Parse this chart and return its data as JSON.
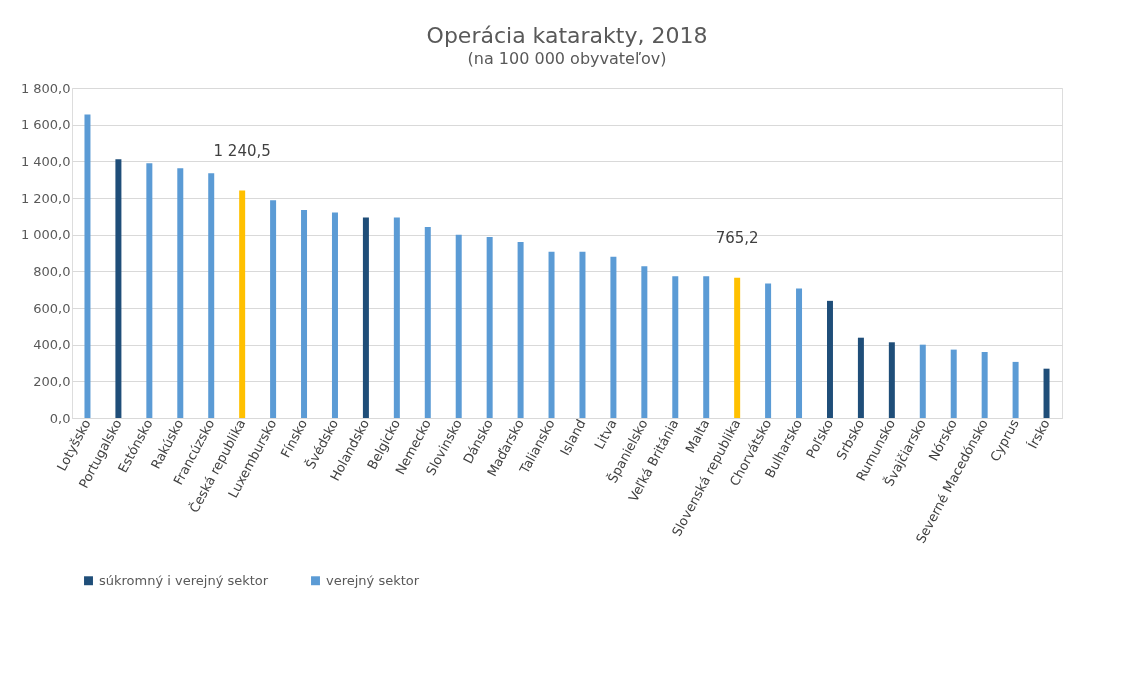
{
  "chart_data": {
    "type": "bar",
    "title": "Operácia katarakty, 2018",
    "subtitle": "(na 100 000 obyvateľov)",
    "categories": [
      "Lotyšsko",
      "Portugalsko",
      "Estónsko",
      "Rakúsko",
      "Francúzsko",
      "Česká republika",
      "Luxembursko",
      "Fínsko",
      "Švédsko",
      "Holandsko",
      "Belgicko",
      "Nemecko",
      "Slovinsko",
      "Dánsko",
      "Maďarsko",
      "Taliansko",
      "Island",
      "Litva",
      "Španielsko",
      "Veľká Británia",
      "Malta",
      "Slovenská republika",
      "Chorvátsko",
      "Bulharsko",
      "Poľsko",
      "Srbsko",
      "Rumunsko",
      "Švajčiarsko",
      "Nórsko",
      "Severné Macedónsko",
      "Cyprus",
      "Írsko"
    ],
    "series": [
      {
        "name": "súkromný i verejný sektor",
        "color": "#1f4e79",
        "values": [
          null,
          1412,
          null,
          null,
          null,
          null,
          null,
          null,
          null,
          1094,
          null,
          null,
          null,
          null,
          null,
          null,
          null,
          null,
          null,
          null,
          null,
          null,
          null,
          null,
          639,
          438,
          413,
          null,
          null,
          null,
          null,
          269
        ]
      },
      {
        "name": "verejný sektor",
        "color": "#5b9bd5",
        "values": [
          1655,
          null,
          1390,
          1362,
          1335,
          1240.5,
          1188,
          1134,
          1121,
          null,
          1094,
          1042,
          1000,
          987,
          960,
          907,
          907,
          880,
          828,
          773,
          773,
          765.2,
          733,
          706,
          null,
          null,
          null,
          400,
          373,
          360,
          306,
          null
        ],
        "colors": [
          "#5b9bd5",
          null,
          "#5b9bd5",
          "#5b9bd5",
          "#5b9bd5",
          "#ffc000",
          "#5b9bd5",
          "#5b9bd5",
          "#5b9bd5",
          null,
          "#5b9bd5",
          "#5b9bd5",
          "#5b9bd5",
          "#5b9bd5",
          "#5b9bd5",
          "#5b9bd5",
          "#5b9bd5",
          "#5b9bd5",
          "#5b9bd5",
          "#5b9bd5",
          "#5b9bd5",
          "#ffc000",
          "#5b9bd5",
          "#5b9bd5",
          null,
          null,
          null,
          "#5b9bd5",
          "#5b9bd5",
          "#5b9bd5",
          "#5b9bd5",
          null
        ],
        "value_labels": [
          null,
          null,
          null,
          null,
          null,
          "1 240,5",
          null,
          null,
          null,
          null,
          null,
          null,
          null,
          null,
          null,
          null,
          null,
          null,
          null,
          null,
          null,
          "765,2",
          null,
          null,
          null,
          null,
          null,
          null,
          null,
          null,
          null,
          null
        ]
      }
    ],
    "ylim": [
      0,
      1800
    ],
    "yticks": [
      {
        "value": 0,
        "label": "0,0"
      },
      {
        "value": 200,
        "label": "200,0"
      },
      {
        "value": 400,
        "label": "400,0"
      },
      {
        "value": 600,
        "label": "600,0"
      },
      {
        "value": 800,
        "label": "800,0"
      },
      {
        "value": 1000,
        "label": "1 000,0"
      },
      {
        "value": 1200,
        "label": "1 200,0"
      },
      {
        "value": 1400,
        "label": "1 400,0"
      },
      {
        "value": 1600,
        "label": "1 600,0"
      },
      {
        "value": 1800,
        "label": "1 800,0"
      }
    ],
    "grid": "y",
    "legend": "bottom"
  }
}
